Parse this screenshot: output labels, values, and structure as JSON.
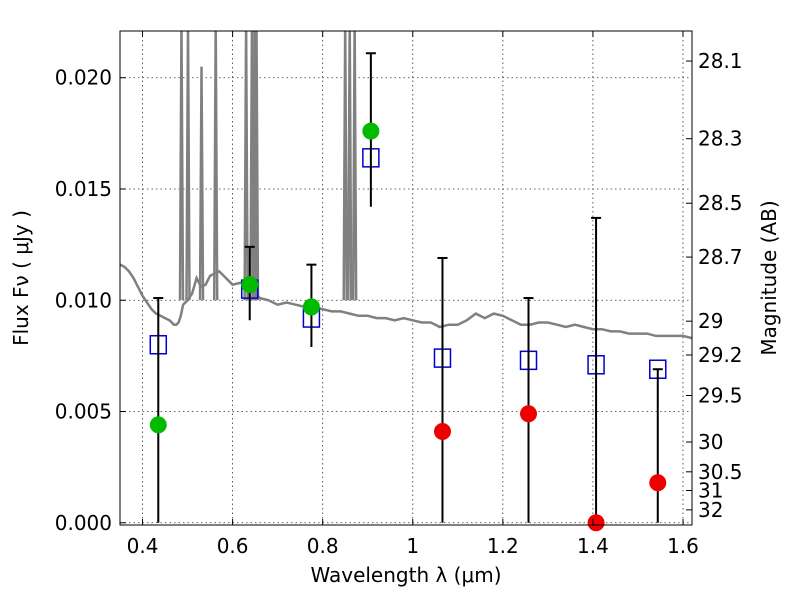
{
  "chart_data": {
    "type": "scatter",
    "title": "",
    "xlabel": "Wavelength  λ (μm)",
    "ylabel": "Flux  Fν  ( μJy )",
    "y2label": "Magnitude (AB)",
    "xlim": [
      0.35,
      1.62
    ],
    "ylim": [
      -0.0001,
      0.0221
    ],
    "grid": true,
    "xticks": [
      0.4,
      0.6,
      0.8,
      1.0,
      1.2,
      1.4,
      1.6
    ],
    "xtick_labels": [
      "0.4",
      "0.6",
      "0.8",
      "1",
      "1.2",
      "1.4",
      "1.6"
    ],
    "yticks": [
      0.0,
      0.005,
      0.01,
      0.015,
      0.02
    ],
    "ytick_labels": [
      "0.000",
      "0.005",
      "0.010",
      "0.015",
      "0.020"
    ],
    "y2ticks": [
      {
        "label": "28.1",
        "flux": 0.02075
      },
      {
        "label": "28.3",
        "flux": 0.01726
      },
      {
        "label": "28.5",
        "flux": 0.01436
      },
      {
        "label": "28.7",
        "flux": 0.01194
      },
      {
        "label": "29",
        "flux": 0.00906
      },
      {
        "label": "29.2",
        "flux": 0.00754
      },
      {
        "label": "29.5",
        "flux": 0.00572
      },
      {
        "label": "30",
        "flux": 0.00363
      },
      {
        "label": "30.5",
        "flux": 0.00229
      },
      {
        "label": "31",
        "flux": 0.00145
      },
      {
        "label": "32",
        "flux": 0.00058
      }
    ],
    "series": [
      {
        "kind": "model-spectrum",
        "color": "#808080",
        "x": [
          0.35,
          0.36,
          0.37,
          0.38,
          0.39,
          0.4,
          0.41,
          0.42,
          0.43,
          0.44,
          0.45,
          0.46,
          0.47,
          0.475,
          0.48,
          0.485,
          0.49,
          0.5,
          0.51,
          0.52,
          0.53,
          0.54,
          0.55,
          0.56,
          0.57,
          0.58,
          0.6,
          0.62,
          0.63,
          0.64,
          0.65,
          0.66,
          0.68,
          0.7,
          0.72,
          0.74,
          0.76,
          0.78,
          0.8,
          0.82,
          0.84,
          0.86,
          0.88,
          0.9,
          0.92,
          0.94,
          0.96,
          0.98,
          1.0,
          1.02,
          1.04,
          1.06,
          1.08,
          1.1,
          1.12,
          1.14,
          1.16,
          1.18,
          1.2,
          1.22,
          1.24,
          1.26,
          1.28,
          1.3,
          1.32,
          1.34,
          1.36,
          1.38,
          1.4,
          1.42,
          1.44,
          1.46,
          1.48,
          1.5,
          1.52,
          1.54,
          1.56,
          1.58,
          1.6,
          1.62
        ],
        "y": [
          0.0116,
          0.0115,
          0.0113,
          0.011,
          0.0106,
          0.0102,
          0.0099,
          0.0096,
          0.0094,
          0.0093,
          0.0092,
          0.0091,
          0.0089,
          0.0089,
          0.009,
          0.0093,
          0.0098,
          0.01,
          0.0103,
          0.011,
          0.0106,
          0.0107,
          0.0111,
          0.0112,
          0.0113,
          0.0111,
          0.0107,
          0.0108,
          0.011,
          0.0107,
          0.0104,
          0.0101,
          0.01,
          0.0098,
          0.0099,
          0.0098,
          0.0097,
          0.0097,
          0.0096,
          0.0095,
          0.0095,
          0.0094,
          0.0093,
          0.0093,
          0.0092,
          0.0092,
          0.0091,
          0.0092,
          0.0091,
          0.009,
          0.009,
          0.0088,
          0.0089,
          0.0089,
          0.0091,
          0.0094,
          0.0092,
          0.0094,
          0.0093,
          0.0091,
          0.0089,
          0.0089,
          0.009,
          0.009,
          0.0089,
          0.0088,
          0.0089,
          0.0088,
          0.0087,
          0.0087,
          0.0086,
          0.0086,
          0.0085,
          0.0085,
          0.0085,
          0.0084,
          0.0084,
          0.0084,
          0.0084,
          0.0083
        ],
        "emission_lines": [
          {
            "x": 0.4865,
            "peak": 0.0225
          },
          {
            "x": 0.501,
            "peak": 0.0225
          },
          {
            "x": 0.531,
            "peak": 0.0205
          },
          {
            "x": 0.5625,
            "peak": 0.0225
          },
          {
            "x": 0.63,
            "peak": 0.0225
          },
          {
            "x": 0.643,
            "peak": 0.0225
          },
          {
            "x": 0.649,
            "peak": 0.0225
          },
          {
            "x": 0.653,
            "peak": 0.0225
          },
          {
            "x": 0.85,
            "peak": 0.0225
          },
          {
            "x": 0.86,
            "peak": 0.0225
          },
          {
            "x": 0.871,
            "peak": 0.0225
          }
        ]
      },
      {
        "kind": "model-photometry",
        "marker": "open-square",
        "color": "#0000cc",
        "x": [
          0.435,
          0.638,
          0.775,
          0.907,
          1.066,
          1.257,
          1.407,
          1.544
        ],
        "y": [
          0.008,
          0.0105,
          0.0092,
          0.0164,
          0.0074,
          0.0073,
          0.0071,
          0.0069
        ]
      },
      {
        "kind": "detections",
        "marker": "filled-circle",
        "color": "#00bb00",
        "x": [
          0.435,
          0.638,
          0.775,
          0.907
        ],
        "y": [
          0.0044,
          0.0107,
          0.0097,
          0.0176
        ],
        "err_low": [
          0.0044,
          0.0016,
          0.0018,
          0.0034
        ],
        "err_high": [
          0.0057,
          0.0017,
          0.0019,
          0.0035
        ]
      },
      {
        "kind": "non-detections",
        "marker": "filled-circle",
        "color": "#ee0000",
        "x": [
          1.066,
          1.257,
          1.407,
          1.544
        ],
        "y": [
          0.0041,
          0.0049,
          0.0,
          0.0018
        ],
        "err_low": [
          0.0041,
          0.0049,
          0.0,
          0.0018
        ],
        "err_high": [
          0.0078,
          0.0052,
          0.0137,
          0.0051
        ]
      }
    ]
  }
}
